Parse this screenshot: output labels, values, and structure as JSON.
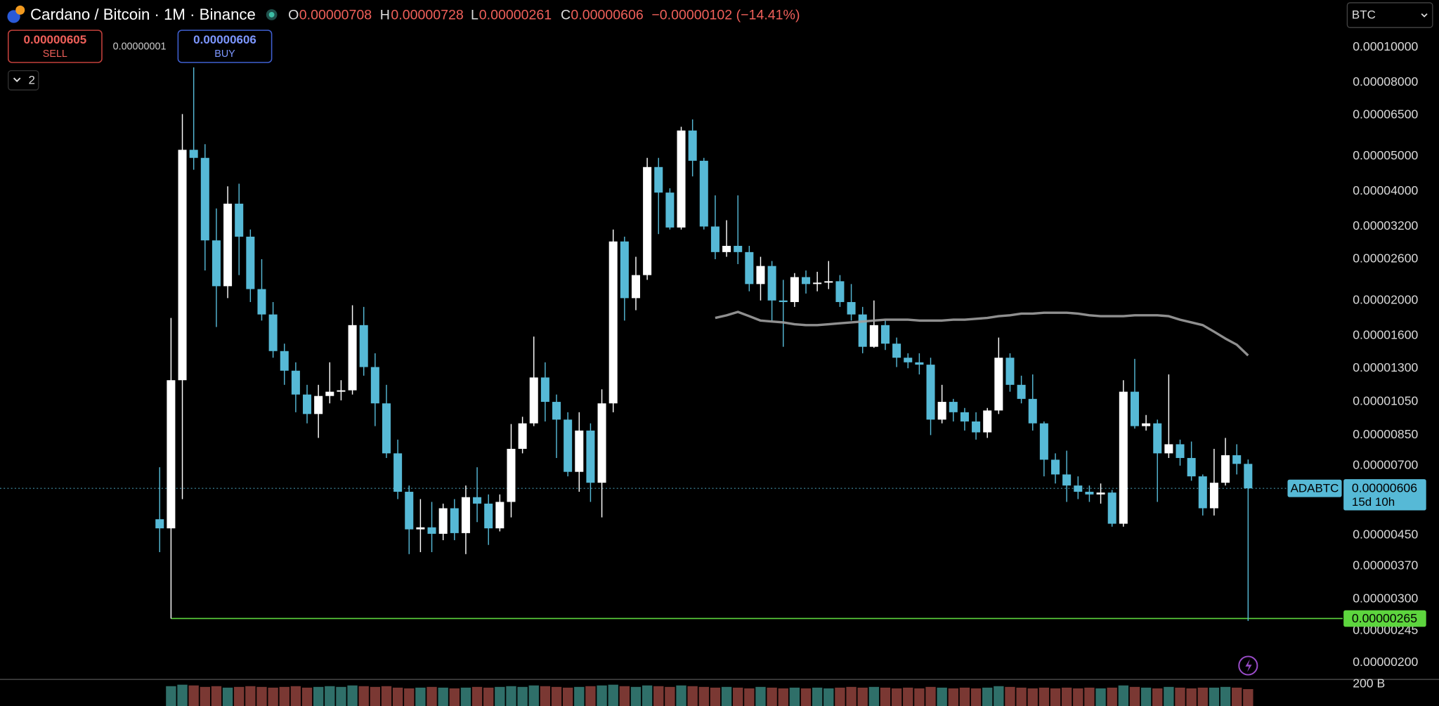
{
  "header": {
    "title": "Cardano / Bitcoin · 1M · Binance",
    "ohlc_labels": [
      "O",
      "H",
      "L",
      "C"
    ],
    "change": "−0.00000102 (−14.41%)"
  },
  "trade": {
    "sell_price": "0.00000605",
    "sell": "SELL",
    "spread": "0.00000001",
    "buy_price": "0.00000606",
    "buy": "BUY"
  },
  "indicators_count": "2",
  "currency": "BTC",
  "symbol": "ADABTC",
  "countdown": "15d 10h",
  "chart_data": {
    "type": "candlestick",
    "log_scale": true,
    "up_color": "#ffffff",
    "down_color": "#56b9d6",
    "volume_up_color": "#2f6f69",
    "volume_down_color": "#7a3833",
    "ylim": [
      1.8e-06,
      0.000135
    ],
    "yticks": [
      {
        "value": 0.0001,
        "label": "0.00010000"
      },
      {
        "value": 8e-05,
        "label": "0.00008000"
      },
      {
        "value": 6.5e-05,
        "label": "0.00006500"
      },
      {
        "value": 5e-05,
        "label": "0.00005000"
      },
      {
        "value": 4e-05,
        "label": "0.00004000"
      },
      {
        "value": 3.2e-05,
        "label": "0.00003200"
      },
      {
        "value": 2.6e-05,
        "label": "0.00002600"
      },
      {
        "value": 2e-05,
        "label": "0.00002000"
      },
      {
        "value": 1.6e-05,
        "label": "0.00001600"
      },
      {
        "value": 1.3e-05,
        "label": "0.00001300"
      },
      {
        "value": 1.05e-05,
        "label": "0.00001050"
      },
      {
        "value": 8.5e-06,
        "label": "0.00000850"
      },
      {
        "value": 7e-06,
        "label": "0.00000700"
      },
      {
        "value": 4.5e-06,
        "label": "0.00000450"
      },
      {
        "value": 3.7e-06,
        "label": "0.00000370"
      },
      {
        "value": 3e-06,
        "label": "0.00000300"
      },
      {
        "value": 2.45e-06,
        "label": "0.00000245"
      },
      {
        "value": 2e-06,
        "label": "0.00000200"
      }
    ],
    "open": [
      4.98e-06,
      4.7e-06,
      1.205e-05,
      5.21e-05,
      4.95e-05,
      2.93e-05,
      2.19e-05,
      3.7e-05,
      3e-05,
      2.15e-05,
      1.83e-05,
      1.45e-05,
      1.28e-05,
      1.1e-05,
      9.72e-06,
      1.09e-05,
      1.12e-05,
      1.13e-05,
      1.71e-05,
      1.31e-05,
      1.04e-05,
      7.57e-06,
      5.93e-06,
      4.67e-06,
      4.73e-06,
      4.54e-06,
      5.34e-06,
      4.56e-06,
      5.73e-06,
      5.5e-06,
      4.7e-06,
      5.56e-06,
      7.79e-06,
      9.16e-06,
      1.226e-05,
      1.05e-05,
      9.38e-06,
      6.73e-06,
      8.75e-06,
      6.28e-06,
      1.04e-05,
      2.91e-05,
      2.03e-05,
      2.35e-05,
      4.67e-05,
      3.97e-05,
      3.18e-05,
      5.89e-05,
      4.86e-05,
      3.2e-05,
      2.72e-05,
      2.83e-05,
      2.72e-05,
      2.22e-05,
      2.49e-05,
      2e-05,
      1.98e-05,
      2.32e-05,
      2.22e-05,
      2.24e-05,
      2.26e-05,
      1.98e-05,
      1.83e-05,
      1.49e-05,
      1.71e-05,
      1.52e-05,
      1.39e-05,
      1.35e-05,
      1.33e-05,
      9.38e-06,
      1.05e-05,
      9.83e-06,
      9.27e-06,
      8.65e-06,
      9.94e-06,
      1.39e-05,
      1.17e-05,
      1.07e-05,
      9.16e-06,
      7.27e-06,
      6.62e-06,
      6.17e-06,
      5.93e-06,
      5.83e-06,
      5.9e-06,
      4.84e-06,
      1.12e-05,
      9e-06,
      9.16e-06,
      7.57e-06,
      8.02e-06,
      7.35e-06,
      6.54e-06,
      5.34e-06,
      6.28e-06,
      7.48e-06,
      7.08e-06
    ],
    "high": [
      6.93e-06,
      1.79e-05,
      6.54e-05,
      8.8e-05,
      5.4e-05,
      3.59e-05,
      4.13e-05,
      4.2e-05,
      3.14e-05,
      2.6e-05,
      1.98e-05,
      1.52e-05,
      1.35e-05,
      1.17e-05,
      1.17e-05,
      1.35e-05,
      1.205e-05,
      1.94e-05,
      1.92e-05,
      1.43e-05,
      1.17e-05,
      8.26e-06,
      6.17e-06,
      5.66e-06,
      5.56e-06,
      5.5e-06,
      5.66e-06,
      6.17e-06,
      6.93e-06,
      5.83e-06,
      5.83e-06,
      9.12e-06,
      9.55e-06,
      1.59e-05,
      1.35e-05,
      1.1e-05,
      9.83e-06,
      9.83e-06,
      9.16e-06,
      1.137e-05,
      3.14e-05,
      3e-05,
      2.64e-05,
      4.95e-05,
      4.95e-05,
      4.08e-05,
      6.03e-05,
      6.32e-05,
      4.95e-05,
      3.9e-05,
      3.33e-05,
      3.9e-05,
      2.83e-05,
      2.64e-05,
      2.57e-05,
      2.28e-05,
      2.38e-05,
      2.42e-05,
      2.4e-05,
      2.57e-05,
      2.35e-05,
      2.22e-05,
      1.92e-05,
      2e-05,
      1.76e-05,
      1.58e-05,
      1.43e-05,
      1.43e-05,
      1.39e-05,
      1.17e-05,
      1.07e-05,
      1.01e-05,
      9.83e-06,
      1.01e-05,
      1.58e-05,
      1.43e-05,
      1.24e-05,
      1.25e-05,
      9.27e-06,
      7.57e-06,
      7.7e-06,
      6.54e-06,
      6.17e-06,
      6.25e-06,
      6e-06,
      1.205e-05,
      1.38e-05,
      9.66e-06,
      9.38e-06,
      1.25e-05,
      8.26e-06,
      8.16e-06,
      6.62e-06,
      7.79e-06,
      8.35e-06,
      8.02e-06,
      7.28e-06
    ],
    "low": [
      4.04e-06,
      2.65e-06,
      5.66e-06,
      4.59e-05,
      2.42e-05,
      1.69e-05,
      2.03e-05,
      2.35e-05,
      1.98e-05,
      1.76e-05,
      1.39e-05,
      1.17e-05,
      9.83e-06,
      9.16e-06,
      8.35e-06,
      1.04e-05,
      1.06e-05,
      1.1e-05,
      1.24e-05,
      9e-06,
      7.35e-06,
      5.66e-06,
      3.99e-06,
      4.04e-06,
      4.04e-06,
      4.36e-06,
      4.36e-06,
      3.99e-06,
      4.89e-06,
      4.23e-06,
      4.61e-06,
      5.04e-06,
      7.57e-06,
      9e-06,
      9.27e-06,
      7.35e-06,
      6.54e-06,
      5.93e-06,
      5.56e-06,
      5.04e-06,
      9.83e-06,
      1.76e-05,
      1.88e-05,
      2.28e-05,
      3.05e-05,
      3.14e-05,
      3.14e-05,
      4.4e-05,
      3.14e-05,
      2.6e-05,
      2.64e-05,
      2.52e-05,
      2.12e-05,
      2e-05,
      1.76e-05,
      1.49e-05,
      1.92e-05,
      2.09e-05,
      2.12e-05,
      2.15e-05,
      1.92e-05,
      1.76e-05,
      1.43e-05,
      1.48e-05,
      1.46e-05,
      1.31e-05,
      1.3e-05,
      1.25e-05,
      8.5e-06,
      9.16e-06,
      9.27e-06,
      8.75e-06,
      8.26e-06,
      8.35e-06,
      9.72e-06,
      1.12e-05,
      1.04e-05,
      8.75e-06,
      6.54e-06,
      6.25e-06,
      5.56e-06,
      5.66e-06,
      5.56e-06,
      5.5e-06,
      4.75e-06,
      4.75e-06,
      8.86e-06,
      8.75e-06,
      5.56e-06,
      7.35e-06,
      7e-06,
      6.36e-06,
      5.1e-06,
      5.1e-06,
      6.17e-06,
      6.62e-06,
      2.61e-06
    ],
    "close": [
      4.7e-06,
      1.205e-05,
      5.21e-05,
      4.95e-05,
      2.93e-05,
      2.19e-05,
      3.7e-05,
      3e-05,
      2.15e-05,
      1.83e-05,
      1.45e-05,
      1.28e-05,
      1.1e-05,
      9.72e-06,
      1.09e-05,
      1.12e-05,
      1.13e-05,
      1.71e-05,
      1.31e-05,
      1.04e-05,
      7.57e-06,
      5.93e-06,
      4.67e-06,
      4.73e-06,
      4.54e-06,
      5.34e-06,
      4.56e-06,
      5.73e-06,
      5.5e-06,
      4.7e-06,
      5.56e-06,
      7.79e-06,
      9.16e-06,
      1.226e-05,
      1.05e-05,
      9.38e-06,
      6.73e-06,
      8.75e-06,
      6.28e-06,
      1.04e-05,
      2.91e-05,
      2.03e-05,
      2.35e-05,
      4.67e-05,
      3.97e-05,
      3.18e-05,
      5.89e-05,
      4.86e-05,
      3.2e-05,
      2.72e-05,
      2.83e-05,
      2.72e-05,
      2.22e-05,
      2.49e-05,
      2e-05,
      1.98e-05,
      2.32e-05,
      2.22e-05,
      2.24e-05,
      2.26e-05,
      1.98e-05,
      1.83e-05,
      1.49e-05,
      1.71e-05,
      1.52e-05,
      1.39e-05,
      1.35e-05,
      1.33e-05,
      9.38e-06,
      1.05e-05,
      9.83e-06,
      9.27e-06,
      8.65e-06,
      9.94e-06,
      1.39e-05,
      1.17e-05,
      1.07e-05,
      9.16e-06,
      7.27e-06,
      6.62e-06,
      6.17e-06,
      5.93e-06,
      5.83e-06,
      5.9e-06,
      4.84e-06,
      1.12e-05,
      9e-06,
      9.16e-06,
      7.57e-06,
      8.02e-06,
      7.35e-06,
      6.54e-06,
      5.34e-06,
      6.28e-06,
      7.48e-06,
      7.08e-06,
      6.06e-06
    ],
    "ma": {
      "color": "#9e9e9e",
      "values": [
        null,
        null,
        null,
        null,
        null,
        null,
        null,
        null,
        null,
        null,
        null,
        null,
        null,
        null,
        null,
        null,
        null,
        null,
        null,
        null,
        null,
        null,
        null,
        null,
        null,
        null,
        null,
        null,
        null,
        null,
        null,
        null,
        null,
        null,
        null,
        null,
        null,
        null,
        null,
        null,
        null,
        null,
        null,
        null,
        null,
        null,
        null,
        null,
        null,
        1.79e-05,
        1.82e-05,
        1.86e-05,
        1.81e-05,
        1.76e-05,
        1.75e-05,
        1.74e-05,
        1.72e-05,
        1.71e-05,
        1.71e-05,
        1.72e-05,
        1.73e-05,
        1.74e-05,
        1.75e-05,
        1.76e-05,
        1.77e-05,
        1.77e-05,
        1.77e-05,
        1.76e-05,
        1.76e-05,
        1.76e-05,
        1.77e-05,
        1.77e-05,
        1.78e-05,
        1.79e-05,
        1.81e-05,
        1.82e-05,
        1.84e-05,
        1.84e-05,
        1.85e-05,
        1.85e-05,
        1.85e-05,
        1.84e-05,
        1.82e-05,
        1.81e-05,
        1.81e-05,
        1.81e-05,
        1.82e-05,
        1.82e-05,
        1.82e-05,
        1.81e-05,
        1.77e-05,
        1.74e-05,
        1.71e-05,
        1.64e-05,
        1.57e-05,
        1.51e-05,
        1.41e-05
      ]
    },
    "volume": [
      null,
      197000000000.0,
      199000000000.0,
      198000000000.0,
      196000000000.0,
      197000000000.0,
      195000000000.0,
      196000000000.0,
      197000000000.0,
      196000000000.0,
      195000000000.0,
      196000000000.0,
      197000000000.0,
      195000000000.0,
      196000000000.0,
      197000000000.0,
      196000000000.0,
      198000000000.0,
      197000000000.0,
      196000000000.0,
      197000000000.0,
      195000000000.0,
      194000000000.0,
      195000000000.0,
      196000000000.0,
      195000000000.0,
      194000000000.0,
      195000000000.0,
      196000000000.0,
      195000000000.0,
      196000000000.0,
      197000000000.0,
      196000000000.0,
      198000000000.0,
      197000000000.0,
      196000000000.0,
      195000000000.0,
      196000000000.0,
      197000000000.0,
      198000000000.0,
      199000000000.0,
      197000000000.0,
      196000000000.0,
      198000000000.0,
      197000000000.0,
      196000000000.0,
      198000000000.0,
      197000000000.0,
      196000000000.0,
      195000000000.0,
      196000000000.0,
      195000000000.0,
      194000000000.0,
      196000000000.0,
      195000000000.0,
      194000000000.0,
      195000000000.0,
      194000000000.0,
      195000000000.0,
      194000000000.0,
      195000000000.0,
      196000000000.0,
      195000000000.0,
      196000000000.0,
      195000000000.0,
      194000000000.0,
      195000000000.0,
      194000000000.0,
      196000000000.0,
      195000000000.0,
      194000000000.0,
      195000000000.0,
      194000000000.0,
      195000000000.0,
      197000000000.0,
      196000000000.0,
      195000000000.0,
      194000000000.0,
      195000000000.0,
      194000000000.0,
      195000000000.0,
      194000000000.0,
      195000000000.0,
      194000000000.0,
      195000000000.0,
      198000000000.0,
      196000000000.0,
      195000000000.0,
      194000000000.0,
      196000000000.0,
      195000000000.0,
      194000000000.0,
      195000000000.0,
      195000000000.0,
      196000000000.0,
      195000000000.0,
      193000000000.0
    ],
    "volume_ylim": [
      170000000000,
      205000000000
    ],
    "volume_ticks": [
      {
        "value": 200000000000,
        "label": "200 B"
      }
    ],
    "hline": {
      "value": 2.65e-06,
      "color": "#5dd53e"
    }
  }
}
